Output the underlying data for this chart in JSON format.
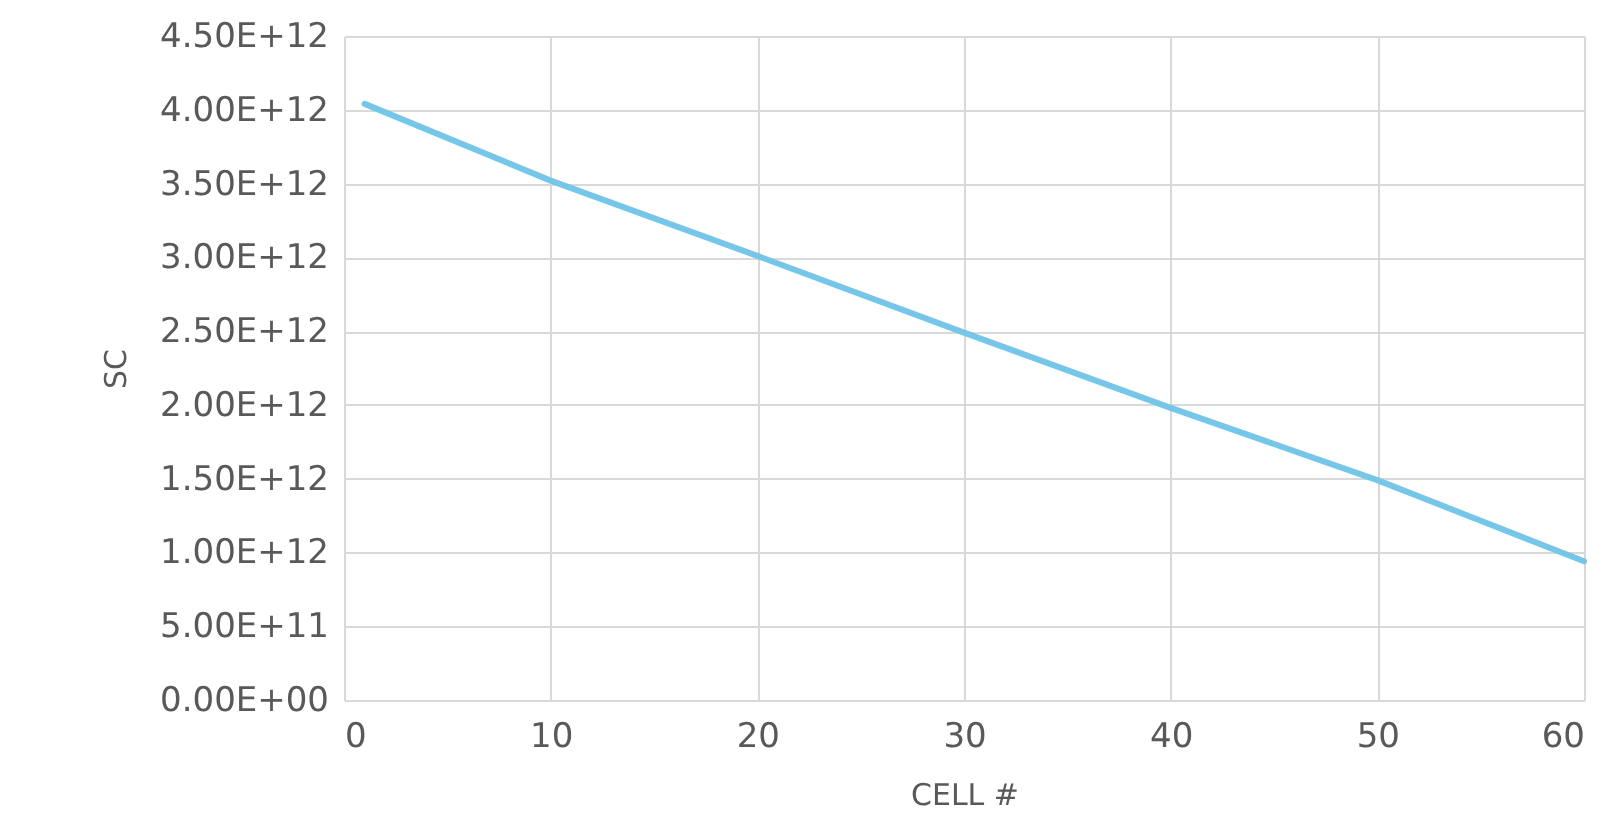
{
  "chart_data": {
    "type": "line",
    "xlabel": "CELL #",
    "ylabel": "SC",
    "x": [
      1,
      10,
      20,
      30,
      40,
      50,
      60
    ],
    "series": [
      {
        "color": "#75c6e8",
        "values": [
          4040000000000.0,
          3520000000000.0,
          3010000000000.0,
          2490000000000.0,
          1980000000000.0,
          1490000000000.0,
          940000000000.0
        ]
      }
    ],
    "xlim": [
      0,
      60
    ],
    "xticks": [
      0,
      10,
      20,
      30,
      40,
      50,
      60
    ],
    "ylim": [
      0,
      4500000000000.0
    ],
    "yticks": [
      {
        "value": 0,
        "label": "0.00E+00"
      },
      {
        "value": 500000000000.0,
        "label": "5.00E+11"
      },
      {
        "value": 1000000000000.0,
        "label": "1.00E+12"
      },
      {
        "value": 1500000000000.0,
        "label": "1.50E+12"
      },
      {
        "value": 2000000000000.0,
        "label": "2.00E+12"
      },
      {
        "value": 2500000000000.0,
        "label": "2.50E+12"
      },
      {
        "value": 3000000000000.0,
        "label": "3.00E+12"
      },
      {
        "value": 3500000000000.0,
        "label": "3.50E+12"
      },
      {
        "value": 4000000000000.0,
        "label": "4.00E+12"
      },
      {
        "value": 4500000000000.0,
        "label": "4.50E+12"
      }
    ],
    "grid": true,
    "marker": "none",
    "line_style": "solid"
  }
}
